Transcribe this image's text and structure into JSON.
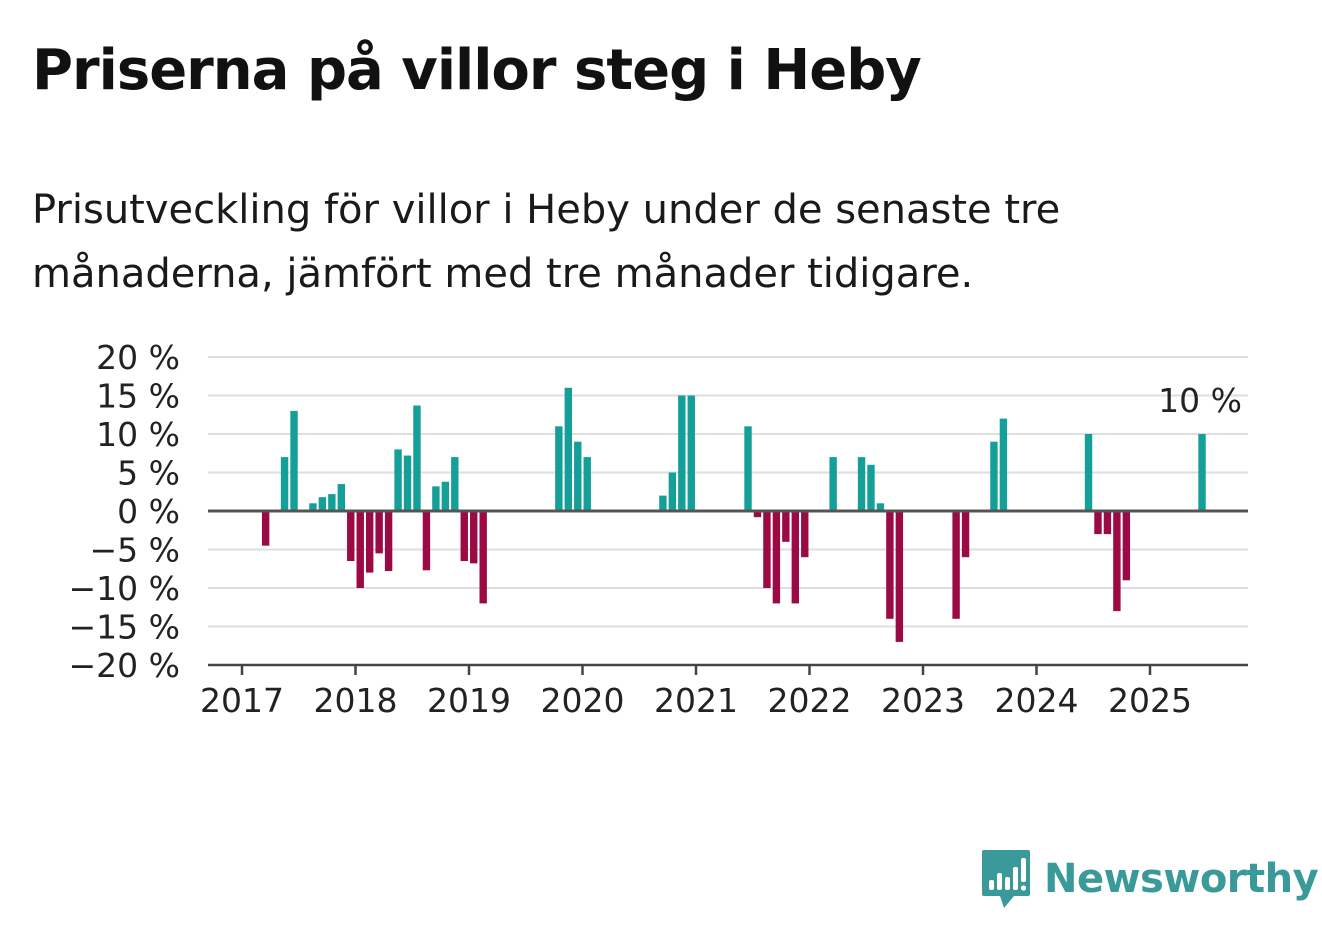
{
  "title": "Priserna på villor steg i Heby",
  "subtitle": "Prisutveckling för villor i Heby under de senaste tre månaderna, jämfört med tre månader tidigare.",
  "brand": {
    "name": "Newsworthy",
    "color": "#3a9a9a",
    "icon": "newsworthy-bar-chart-icon"
  },
  "colors": {
    "positive": "#14a098",
    "negative": "#9b0a45",
    "grid": "#dedede",
    "zero_line": "#555555"
  },
  "chart_data": {
    "type": "bar",
    "x_start": "2017-01",
    "x_unit": "month",
    "x_ticks": [
      "2017",
      "2018",
      "2019",
      "2020",
      "2021",
      "2022",
      "2023",
      "2024",
      "2025"
    ],
    "y_ticks": [
      "20 %",
      "15 %",
      "10 %",
      "5 %",
      "0 %",
      "−5 %",
      "−10 %",
      "−15 %",
      "−20 %"
    ],
    "ylim": [
      -20,
      20
    ],
    "grid": true,
    "annotation": {
      "text": "10 %",
      "index": 101
    },
    "values": [
      null,
      null,
      -4.5,
      null,
      7,
      13,
      null,
      1,
      1.8,
      2.2,
      3.5,
      -6.5,
      -10,
      -8,
      -5.5,
      -7.8,
      8,
      7.2,
      13.7,
      -7.7,
      3.2,
      3.8,
      7,
      -6.5,
      -6.8,
      -12,
      null,
      null,
      null,
      null,
      null,
      null,
      null,
      11,
      16,
      9,
      7,
      null,
      null,
      null,
      null,
      null,
      null,
      null,
      2,
      5,
      15,
      15,
      null,
      null,
      null,
      null,
      null,
      11,
      -0.8,
      -10,
      -12,
      -4,
      -12,
      -6,
      null,
      null,
      7,
      null,
      null,
      7,
      6,
      1,
      -14,
      -17,
      null,
      null,
      null,
      null,
      null,
      -14,
      -6,
      null,
      null,
      9,
      12,
      null,
      null,
      null,
      null,
      null,
      null,
      null,
      null,
      10,
      -3,
      -3,
      -13,
      -9,
      null,
      null,
      null,
      null,
      null,
      null,
      null,
      10
    ]
  }
}
